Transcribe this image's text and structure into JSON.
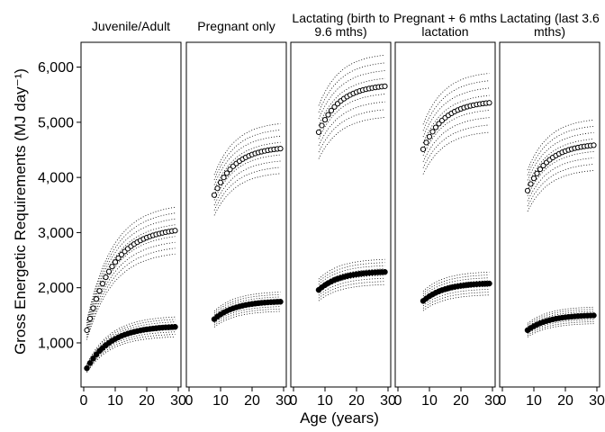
{
  "chart_data": {
    "type": "scatter",
    "ylabel": "Gross Energetic Requirements (MJ day⁻¹)",
    "xlabel": "Age (years)",
    "xlim": [
      0,
      30
    ],
    "ylim": [
      200,
      6450
    ],
    "x_ticks": [
      0,
      10,
      20,
      30
    ],
    "x_tick_labels": [
      "0",
      "10",
      "20",
      "30"
    ],
    "y_ticks": [
      1000,
      2000,
      3000,
      4000,
      5000,
      6000
    ],
    "y_tick_labels": [
      "1,000",
      "2,000",
      "3,000",
      "4,000",
      "5,000",
      "6,000"
    ],
    "grid": false,
    "series_styles": {
      "open_circles": "#000000",
      "filled_circles": "#000000",
      "dotted_quantile_lines": "#000000"
    },
    "panels": [
      {
        "title_lines": [
          "Juvenile/Adult"
        ],
        "open_circles": {
          "x_start": 1,
          "x_end": 29,
          "start": 1230,
          "end": 3100,
          "rate": 0.12
        },
        "filled_circles": {
          "x_start": 1,
          "x_end": 29,
          "start": 540,
          "end": 1310,
          "rate": 0.13
        },
        "band_fraction": 0.14,
        "band_lines": 9
      },
      {
        "title_lines": [
          "Pregnant only"
        ],
        "open_circles": {
          "x_start": 8,
          "x_end": 29,
          "start": 3680,
          "end": 4560,
          "rate": 0.15
        },
        "filled_circles": {
          "x_start": 8,
          "x_end": 29,
          "start": 1430,
          "end": 1760,
          "rate": 0.15
        },
        "band_fraction": 0.1,
        "band_lines": 9
      },
      {
        "title_lines": [
          "Lactating (birth to",
          "9.6 mths)"
        ],
        "open_circles": {
          "x_start": 8,
          "x_end": 29,
          "start": 4820,
          "end": 5690,
          "rate": 0.15
        },
        "filled_circles": {
          "x_start": 8,
          "x_end": 29,
          "start": 1960,
          "end": 2300,
          "rate": 0.15
        },
        "band_fraction": 0.1,
        "band_lines": 9
      },
      {
        "title_lines": [
          "Pregnant + 6 mths",
          "lactation"
        ],
        "open_circles": {
          "x_start": 8,
          "x_end": 29,
          "start": 4510,
          "end": 5390,
          "rate": 0.15
        },
        "filled_circles": {
          "x_start": 8,
          "x_end": 29,
          "start": 1760,
          "end": 2090,
          "rate": 0.15
        },
        "band_fraction": 0.1,
        "band_lines": 9
      },
      {
        "title_lines": [
          "Lactating (last 3.6",
          "mths)"
        ],
        "open_circles": {
          "x_start": 8,
          "x_end": 29,
          "start": 3760,
          "end": 4620,
          "rate": 0.15
        },
        "filled_circles": {
          "x_start": 8,
          "x_end": 29,
          "start": 1230,
          "end": 1510,
          "rate": 0.15
        },
        "band_fraction": 0.1,
        "band_lines": 9
      }
    ]
  }
}
